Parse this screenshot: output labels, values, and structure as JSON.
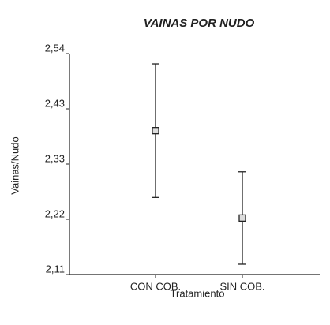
{
  "chart_data": {
    "type": "errorbar",
    "title": "VAINAS POR NUDO",
    "x_label": "Tratamiento",
    "y_label": "Vainas/Nudo",
    "categories": [
      "CON COB.",
      "SIN COB."
    ],
    "values": [
      2.39,
      2.22
    ],
    "errors": [
      0.13,
      0.09
    ],
    "color": "#222222",
    "ylim": [
      2.11,
      2.54
    ],
    "yticks": [
      {
        "value": 2.11,
        "label": "2,11"
      },
      {
        "value": 2.2175,
        "label": "2,22"
      },
      {
        "value": 2.325,
        "label": "2,33"
      },
      {
        "value": 2.4325,
        "label": "2,43"
      },
      {
        "value": 2.54,
        "label": "2,54"
      }
    ]
  }
}
